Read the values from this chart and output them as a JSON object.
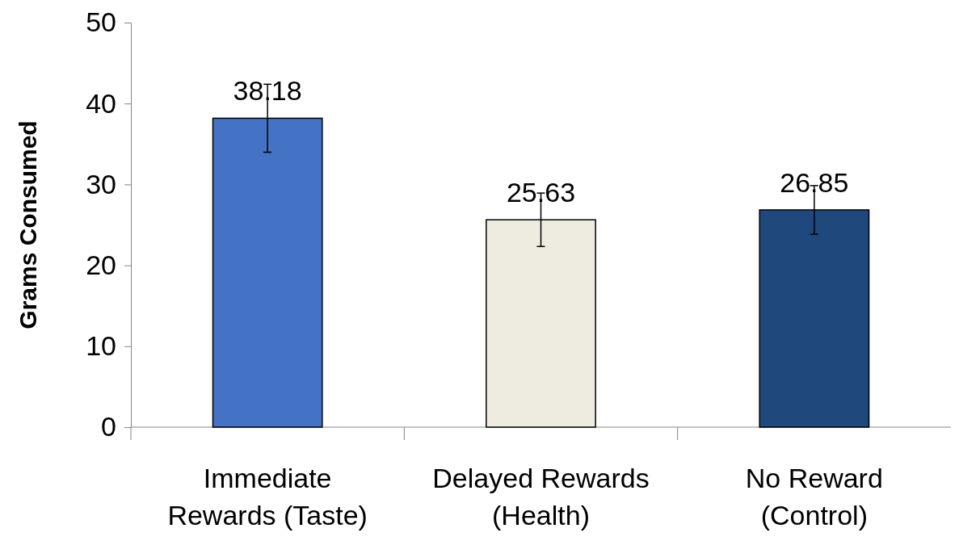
{
  "chart_data": {
    "type": "bar",
    "ylabel": "Grams Consumed",
    "categories": [
      "Immediate Rewards (Taste)",
      "Delayed Rewards (Health)",
      "No Reward (Control)"
    ],
    "values": [
      38.18,
      25.63,
      26.85
    ],
    "colors": [
      "#4472c4",
      "#eeece1",
      "#1f497d"
    ],
    "errors": [
      4.2,
      3.3,
      3.0
    ],
    "ylim": [
      0,
      50
    ],
    "yticks": [
      0,
      10,
      20,
      30,
      40,
      50
    ],
    "grid": false,
    "data_labels": true
  }
}
